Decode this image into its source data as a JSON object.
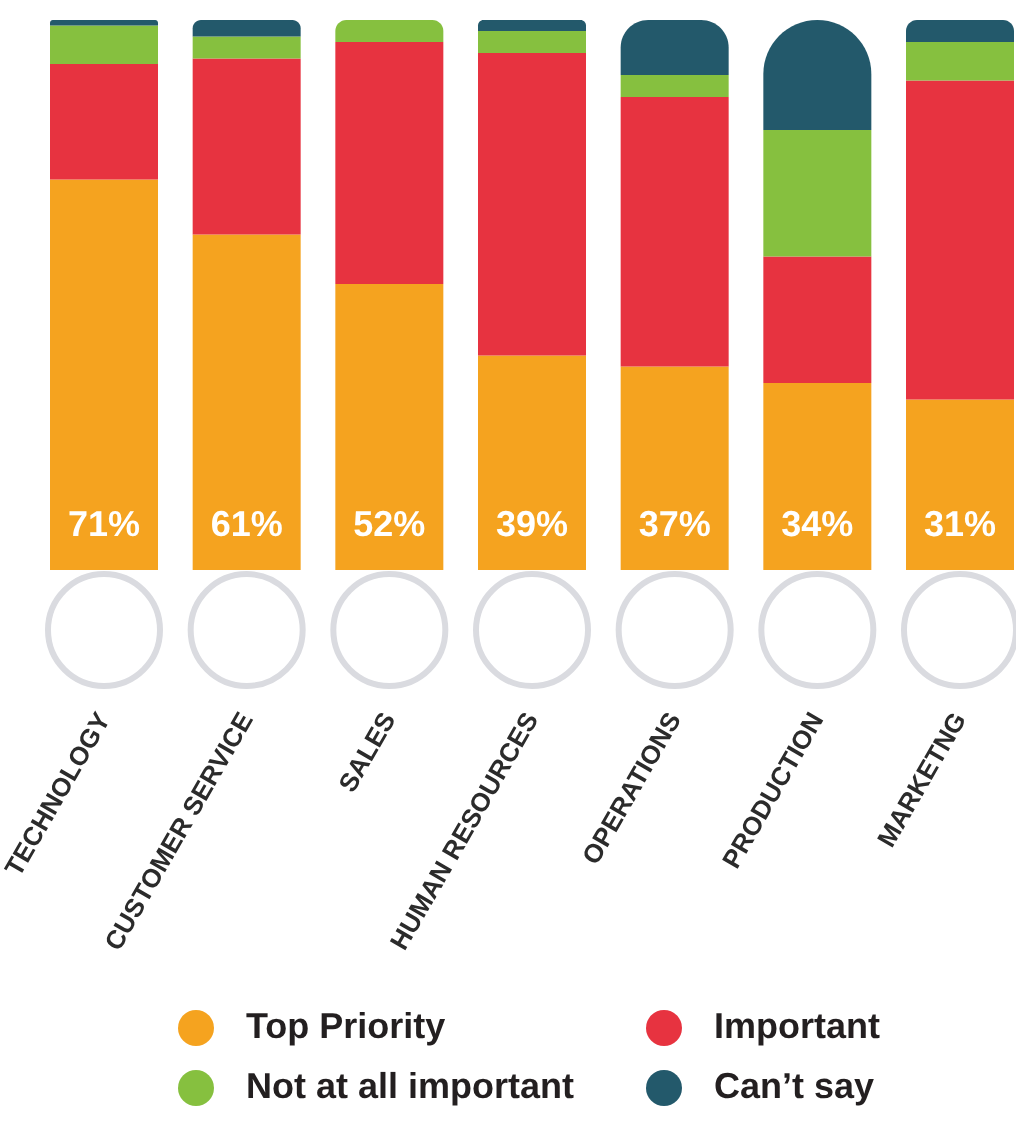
{
  "chart_data": {
    "type": "bar",
    "categories": [
      "TECHNOLOGY",
      "CUSTOMER SERVICE",
      "SALES",
      "HUMAN RESOURCES",
      "OPERATIONS",
      "PRODUCTION",
      "MARKETNG"
    ],
    "stacked": true,
    "legend": "bottom",
    "tick_labels": "x",
    "series": [
      {
        "name": "Top Priority",
        "color": "#f5a31f",
        "values": [
          71,
          61,
          52,
          39,
          37,
          34,
          31
        ],
        "value_labels": [
          "71%",
          "61%",
          "52%",
          "39%",
          "37%",
          "34%",
          "31%"
        ]
      },
      {
        "name": "Important",
        "color": "#e73340",
        "values": [
          21,
          32,
          44,
          55,
          49,
          23,
          58
        ]
      },
      {
        "name": "Not at all important",
        "color": "#86c03f",
        "values": [
          7,
          4,
          4,
          4,
          4,
          23,
          7
        ]
      },
      {
        "name": "Can’t say",
        "color": "#23596b",
        "values": [
          1,
          3,
          0,
          2,
          10,
          20,
          4
        ]
      }
    ]
  }
}
